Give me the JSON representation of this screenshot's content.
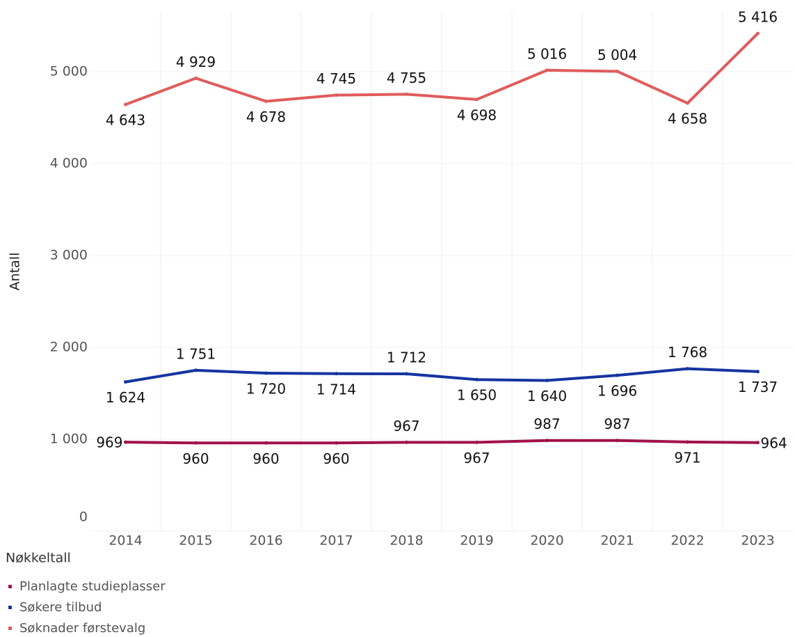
{
  "chart_data": {
    "type": "line",
    "y_label": "Antall",
    "legend_title": "Nøkkeltall",
    "categories": [
      "2014",
      "2015",
      "2016",
      "2017",
      "2018",
      "2019",
      "2020",
      "2021",
      "2022",
      "2023"
    ],
    "series": [
      {
        "name": "Planlagte studieplasser",
        "color": "#a1124a",
        "values": [
          969,
          960,
          960,
          960,
          967,
          967,
          987,
          987,
          971,
          964
        ]
      },
      {
        "name": "Søkere tilbud",
        "color": "#1534a1",
        "values": [
          1624,
          1751,
          1720,
          1714,
          1712,
          1650,
          1640,
          1696,
          1768,
          1737
        ],
        "value_labels": [
          "1 624",
          "1 751",
          "1 720",
          "1 714",
          "1 712",
          "1 650",
          "1 640",
          "1 696",
          "1 768",
          "1 737"
        ]
      },
      {
        "name": "Søknader førstevalg",
        "color": "#e05c5c",
        "values": [
          4643,
          4929,
          4678,
          4745,
          4755,
          4698,
          5016,
          5004,
          4658,
          5416
        ],
        "value_labels": [
          "4 643",
          "4 929",
          "4 678",
          "4 745",
          "4 755",
          "4 698",
          "5 016",
          "5 004",
          "4 658",
          "5 416"
        ]
      }
    ],
    "ylim": [
      0,
      5500
    ],
    "yticks": [
      0,
      {
        "value": 1000,
        "label": "1 000"
      },
      {
        "value": 2000,
        "label": "2 000"
      },
      {
        "value": 3000,
        "label": "3 000"
      },
      {
        "value": 4000,
        "label": "4 000"
      },
      {
        "value": 5000,
        "label": "5 000"
      }
    ],
    "grid": true,
    "legend": "bottom-left"
  }
}
